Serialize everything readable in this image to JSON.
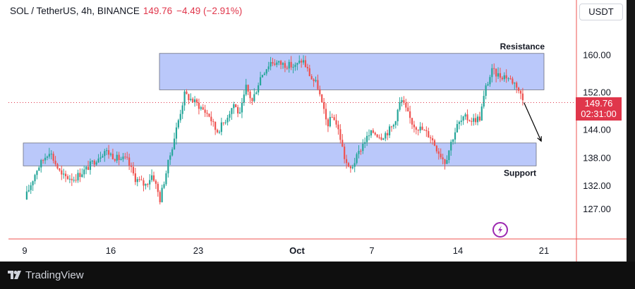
{
  "header": {
    "symbol": "SOL / TetherUS, 4h, BINANCE",
    "last_price": "149.76",
    "change": "−4.49 (−2.91%)"
  },
  "currency_button": "USDT",
  "price_tag": {
    "price": "149.76",
    "countdown": "02:31:00"
  },
  "footer": {
    "brand": "TradingView"
  },
  "colors": {
    "up": "#26a69a",
    "down": "#ef5350",
    "zone": "#b3c2f9",
    "accent_red": "#e0364b"
  },
  "icons": [
    "tradingview-logo-icon",
    "lightning-icon",
    "arrow-down-icon"
  ],
  "chart_data": {
    "type": "candlestick",
    "symbol": "SOL / TetherUS",
    "interval": "4h",
    "exchange": "BINANCE",
    "quote_currency": "USDT",
    "last_price": 149.76,
    "y_ticks": [
      127.0,
      132.0,
      138.0,
      144.0,
      152.0,
      160.0
    ],
    "x_ticks": [
      "9",
      "16",
      "23",
      "Oct",
      "7",
      "14",
      "21"
    ],
    "zones": [
      {
        "label": "Resistance",
        "low": 152.5,
        "high": 160.3
      },
      {
        "label": "Support",
        "low": 136.2,
        "high": 141.1
      }
    ],
    "path_points": [
      [
        0.0,
        129.0
      ],
      [
        1.0,
        135.5
      ],
      [
        2.0,
        139.5
      ],
      [
        3.0,
        134.0
      ],
      [
        4.0,
        133.5
      ],
      [
        5.0,
        135.5
      ],
      [
        6.5,
        139.5
      ],
      [
        7.5,
        137.8
      ],
      [
        8.3,
        137.5
      ],
      [
        9.0,
        133.5
      ],
      [
        9.8,
        132.0
      ],
      [
        10.4,
        134.5
      ],
      [
        11.0,
        129.0
      ],
      [
        11.6,
        136.0
      ],
      [
        12.5,
        146.0
      ],
      [
        13.0,
        151.5
      ],
      [
        14.0,
        149.5
      ],
      [
        15.0,
        147.0
      ],
      [
        15.6,
        143.5
      ],
      [
        16.2,
        145.5
      ],
      [
        17.0,
        149.5
      ],
      [
        17.5,
        147.0
      ],
      [
        18.0,
        153.0
      ],
      [
        18.5,
        150.0
      ],
      [
        19.2,
        155.5
      ],
      [
        20.0,
        158.5
      ],
      [
        21.0,
        158.0
      ],
      [
        22.0,
        157.5
      ],
      [
        22.6,
        159.0
      ],
      [
        23.3,
        155.0
      ],
      [
        23.8,
        153.5
      ],
      [
        24.2,
        149.0
      ],
      [
        24.6,
        145.0
      ],
      [
        25.1,
        147.0
      ],
      [
        25.6,
        143.0
      ],
      [
        26.0,
        138.0
      ],
      [
        26.4,
        135.0
      ],
      [
        27.0,
        138.0
      ],
      [
        27.6,
        141.5
      ],
      [
        28.3,
        143.5
      ],
      [
        29.0,
        142.5
      ],
      [
        29.5,
        143.5
      ],
      [
        30.0,
        145.0
      ],
      [
        30.6,
        150.5
      ],
      [
        31.2,
        147.0
      ],
      [
        31.6,
        145.0
      ],
      [
        32.3,
        144.0
      ],
      [
        33.0,
        142.5
      ],
      [
        33.6,
        139.5
      ],
      [
        34.2,
        137.0
      ],
      [
        34.7,
        141.5
      ],
      [
        35.2,
        145.0
      ],
      [
        35.8,
        146.5
      ],
      [
        36.4,
        146.0
      ],
      [
        37.0,
        146.5
      ],
      [
        37.5,
        153.0
      ],
      [
        38.0,
        156.5
      ],
      [
        38.6,
        155.5
      ],
      [
        39.1,
        155.5
      ],
      [
        39.6,
        154.5
      ],
      [
        40.0,
        153.5
      ],
      [
        40.4,
        151.0
      ],
      [
        40.6,
        149.76
      ]
    ],
    "projection": {
      "from": [
        40.6,
        149.76
      ],
      "to": [
        42.0,
        141.5
      ]
    }
  }
}
